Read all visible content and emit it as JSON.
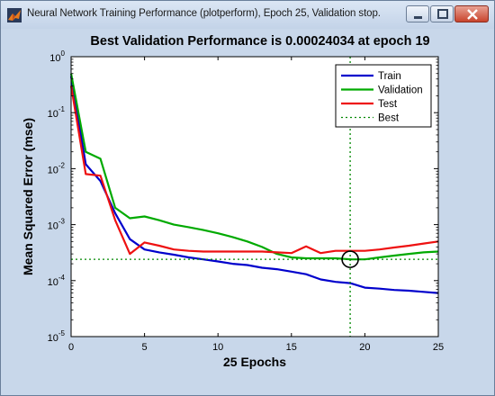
{
  "window": {
    "title": "Neural Network Training Performance (plotperform), Epoch 25, Validation stop."
  },
  "icons": [
    "matlab-icon",
    "minimize-icon",
    "maximize-icon",
    "close-icon"
  ],
  "chart_data": {
    "type": "line",
    "title": "Best Validation Performance is 0.00024034 at epoch 19",
    "xlabel": "25 Epochs",
    "ylabel": "Mean Squared Error  (mse)",
    "xlim": [
      0,
      25
    ],
    "ylim": [
      1e-05,
      1
    ],
    "yscale": "log",
    "grid": false,
    "legend_position": "top-right",
    "x_ticks": [
      0,
      5,
      10,
      15,
      20,
      25
    ],
    "x_tick_labels": [
      "0",
      "5",
      "10",
      "15",
      "20",
      "25"
    ],
    "y_ticks": [
      1,
      0.1,
      0.01,
      0.001,
      0.0001,
      1e-05
    ],
    "y_tick_labels": [
      {
        "base": "10",
        "exp": "0"
      },
      {
        "base": "10",
        "exp": "-1"
      },
      {
        "base": "10",
        "exp": "-2"
      },
      {
        "base": "10",
        "exp": "-3"
      },
      {
        "base": "10",
        "exp": "-4"
      },
      {
        "base": "10",
        "exp": "-5"
      }
    ],
    "x": [
      0,
      1,
      2,
      3,
      4,
      5,
      6,
      7,
      8,
      9,
      10,
      11,
      12,
      13,
      14,
      15,
      16,
      17,
      18,
      19,
      20,
      21,
      22,
      23,
      24,
      25
    ],
    "series": [
      {
        "name": "Train",
        "color": "#0000cc",
        "values": [
          0.45,
          0.012,
          0.006,
          0.0016,
          0.00055,
          0.00036,
          0.00032,
          0.00029,
          0.00026,
          0.00024,
          0.00022,
          0.0002,
          0.00019,
          0.00017,
          0.00016,
          0.000145,
          0.00013,
          0.000105,
          9.5e-05,
          9e-05,
          7.5e-05,
          7.2e-05,
          6.8e-05,
          6.6e-05,
          6.3e-05,
          6e-05
        ]
      },
      {
        "name": "Validation",
        "color": "#00aa00",
        "values": [
          0.5,
          0.02,
          0.015,
          0.002,
          0.0013,
          0.0014,
          0.0012,
          0.001,
          0.0009,
          0.0008,
          0.0007,
          0.0006,
          0.0005,
          0.0004,
          0.0003,
          0.00026,
          0.00025,
          0.00025,
          0.00025,
          0.00024034,
          0.00024,
          0.00026,
          0.00028,
          0.0003,
          0.00032,
          0.00033
        ]
      },
      {
        "name": "Test",
        "color": "#ee1111",
        "values": [
          0.3,
          0.008,
          0.0075,
          0.0012,
          0.0003,
          0.00048,
          0.00042,
          0.00036,
          0.00034,
          0.00033,
          0.00033,
          0.00033,
          0.00033,
          0.00033,
          0.00032,
          0.00031,
          0.00041,
          0.00031,
          0.00034,
          0.00034,
          0.00034,
          0.00036,
          0.00039,
          0.00042,
          0.00046,
          0.0005
        ]
      }
    ],
    "best": {
      "name": "Best",
      "color": "#008800",
      "epoch": 19,
      "value": 0.00024034
    }
  }
}
